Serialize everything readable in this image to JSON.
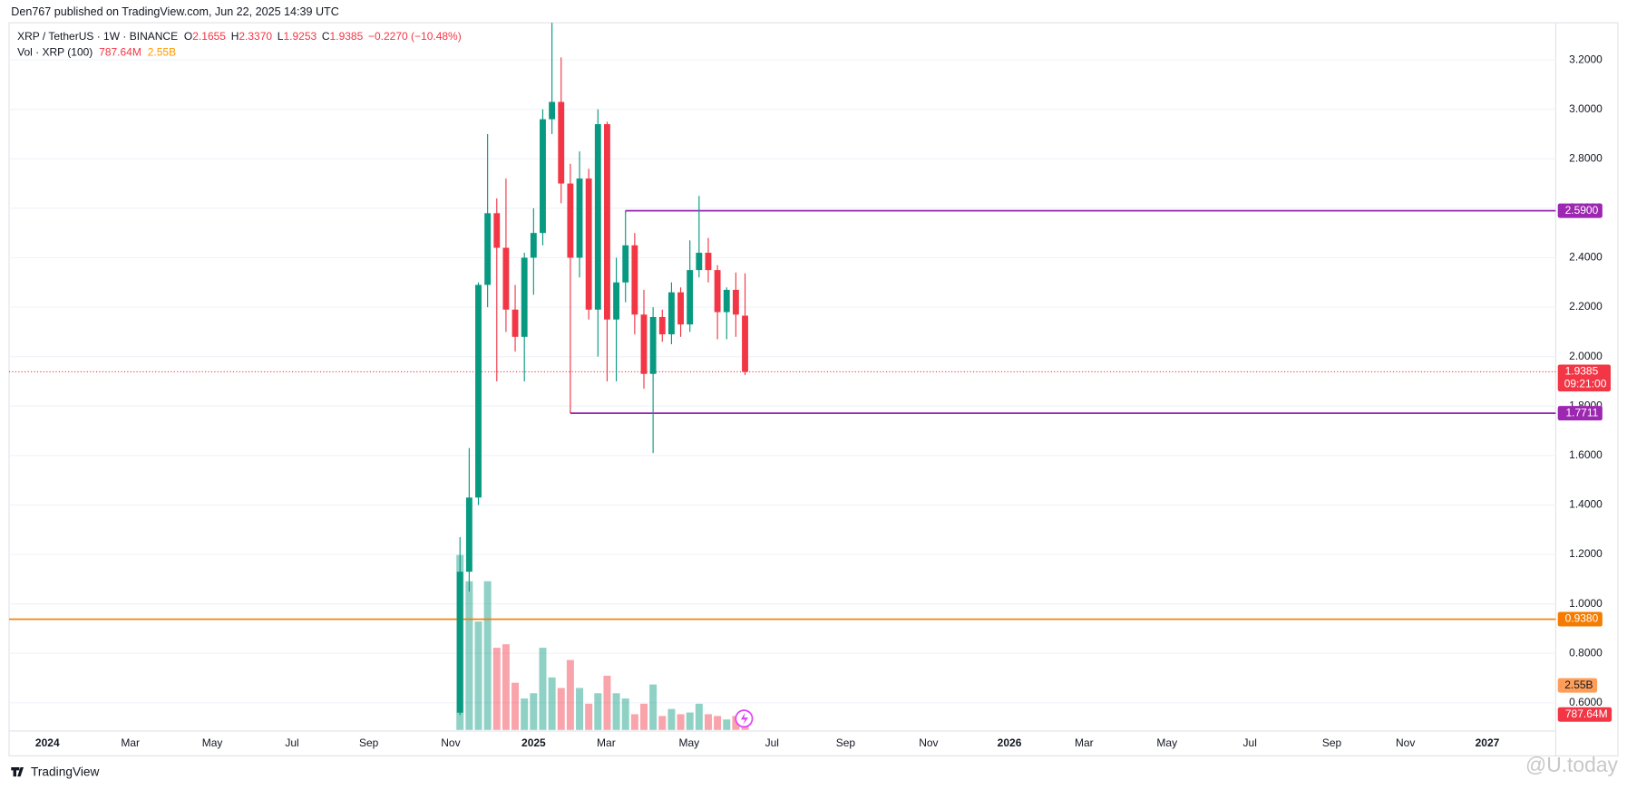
{
  "header": {
    "published": "Den767 published on TradingView.com, Jun 22, 2025 14:39 UTC",
    "symbol": "XRP / TetherUS · 1W · BINANCE",
    "ohlc": [
      {
        "key": "O",
        "text": "2.1655"
      },
      {
        "key": "H",
        "text": "2.3370"
      },
      {
        "key": "L",
        "text": "1.9253"
      },
      {
        "key": "C",
        "text": "1.9385"
      }
    ],
    "change": "−0.2270 (−10.48%)",
    "volume_title": "Vol · XRP (100)"
  },
  "footer": {
    "brand": "TradingView",
    "watermark": "@U.today"
  },
  "chart_data": {
    "type": "candlestick",
    "categories": [
      null,
      null,
      null,
      null,
      null,
      null,
      null,
      null,
      null,
      null,
      null,
      null,
      null,
      null,
      null,
      null,
      null,
      null,
      null,
      null,
      null,
      null,
      null,
      null,
      null,
      null,
      null,
      null,
      null,
      null,
      null,
      null
    ],
    "open": [
      0.56,
      1.13,
      1.43,
      2.29,
      2.58,
      2.44,
      2.19,
      2.08,
      2.4,
      2.5,
      2.96,
      3.03,
      2.7,
      2.4,
      2.72,
      2.19,
      2.94,
      2.15,
      2.3,
      2.45,
      2.17,
      1.93,
      2.16,
      2.09,
      2.26,
      2.13,
      2.35,
      2.42,
      2.35,
      2.18,
      2.27,
      2.1655
    ],
    "high": [
      1.27,
      1.63,
      2.3,
      2.9,
      2.64,
      2.72,
      2.29,
      2.42,
      2.6,
      3.0,
      3.4,
      3.21,
      2.78,
      2.83,
      2.76,
      3.0,
      2.95,
      2.4,
      2.59,
      2.5,
      2.27,
      2.2,
      2.19,
      2.3,
      2.28,
      2.47,
      2.65,
      2.48,
      2.37,
      2.28,
      2.34,
      2.337
    ],
    "low": [
      0.55,
      1.05,
      1.4,
      2.2,
      1.9,
      2.1,
      2.02,
      1.9,
      2.25,
      2.45,
      2.9,
      2.62,
      1.7711,
      2.32,
      2.15,
      2.0,
      1.9,
      1.9,
      2.22,
      2.09,
      1.87,
      1.61,
      2.06,
      2.05,
      2.08,
      2.1,
      2.32,
      2.3,
      2.07,
      2.07,
      2.08,
      1.9253
    ],
    "close": [
      1.13,
      1.43,
      2.29,
      2.58,
      2.44,
      2.19,
      2.08,
      2.4,
      2.5,
      2.96,
      3.03,
      2.7,
      2.4,
      2.72,
      2.19,
      2.94,
      2.15,
      2.3,
      2.45,
      2.17,
      1.93,
      2.16,
      2.09,
      2.26,
      2.13,
      2.35,
      2.42,
      2.35,
      2.18,
      2.27,
      2.17,
      1.9385
    ],
    "volume": [
      10000000000,
      8500000000,
      6200000000,
      8500000000,
      4700000000,
      4900000000,
      2700000000,
      1800000000,
      2100000000,
      4700000000,
      3000000000,
      2400000000,
      4000000000,
      2400000000,
      1500000000,
      2100000000,
      3100000000,
      2100000000,
      1800000000,
      900000000,
      1500000000,
      2600000000,
      800000000,
      1200000000,
      900000000,
      1000000000,
      1500000000,
      900000000,
      800000000,
      600000000,
      800000000,
      787640000
    ],
    "volume_last_label": "787.64M",
    "volume_ma": {
      "value": 2550000000,
      "label": "2.55B"
    },
    "up_color": "#089981",
    "down_color": "#f23645",
    "ylim": [
      0.49,
      3.35
    ],
    "yticks": [
      {
        "value": 0.6,
        "label": "0.6000"
      },
      {
        "value": 0.8,
        "label": "0.8000"
      },
      {
        "value": 1.0,
        "label": "1.0000"
      },
      {
        "value": 1.2,
        "label": "1.2000"
      },
      {
        "value": 1.4,
        "label": "1.4000"
      },
      {
        "value": 1.6,
        "label": "1.6000"
      },
      {
        "value": 1.8,
        "label": "1.8000"
      },
      {
        "value": 2.0,
        "label": "2.0000"
      },
      {
        "value": 2.2,
        "label": "2.2000"
      },
      {
        "value": 2.4,
        "label": "2.4000"
      },
      {
        "value": 2.6,
        "label": "2.6000"
      },
      {
        "value": 2.8,
        "label": "2.8000"
      },
      {
        "value": 3.0,
        "label": "3.0000"
      },
      {
        "value": 3.2,
        "label": "3.2000"
      }
    ],
    "xtick_labels": [
      "2024",
      "Mar",
      "May",
      "Jul",
      "Sep",
      "Nov",
      "2025",
      "Mar",
      "May",
      "Jul",
      "Sep",
      "Nov",
      "2026",
      "Mar",
      "May",
      "Jul",
      "Sep",
      "Nov",
      "2027"
    ],
    "grid": true,
    "last_price": 1.9385,
    "countdown": "09:21:00",
    "levels": [
      {
        "price": {
          "value": 2.59,
          "label": "2.5900"
        },
        "color": "#9c27b0"
      },
      {
        "price": 1.7711,
        "color": "#9c27b0"
      },
      {
        "price": {
          "value": 0.938,
          "label": "0.9380"
        },
        "color": "#f57c00"
      }
    ]
  }
}
